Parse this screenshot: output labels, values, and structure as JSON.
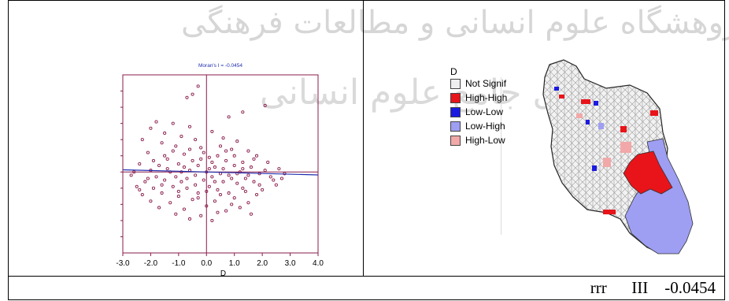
{
  "watermark_line1": "پژوهشگاه علوم انسانی و مطالعات فرهنگی",
  "watermark_line2": "پرتال جامع علوم انسانی",
  "chart_data": {
    "type": "scatter",
    "title": "Moran's I = -0.0454",
    "xlabel": "D",
    "ylabel": "",
    "xlim": [
      -3.0,
      4.0
    ],
    "ylim": [
      -5.0,
      6.0
    ],
    "xticks": [
      "-3.0",
      "-2.0",
      "-1.0",
      "0.0",
      "1.0",
      "2.0",
      "3.0",
      "4.0"
    ],
    "regression": {
      "slope": -0.0454,
      "intercept": 0.0
    },
    "series": [
      {
        "values": [
          [
            -0.3,
            5.3
          ],
          [
            -0.5,
            4.8
          ],
          [
            -0.7,
            4.6
          ],
          [
            2.1,
            4.1
          ],
          [
            1.3,
            3.7
          ],
          [
            0.8,
            3.4
          ],
          [
            -1.8,
            3.1
          ],
          [
            -1.2,
            3.0
          ],
          [
            -2.0,
            2.7
          ],
          [
            -1.5,
            2.4
          ],
          [
            -0.6,
            2.8
          ],
          [
            0.2,
            2.5
          ],
          [
            -0.9,
            2.2
          ],
          [
            -2.3,
            2.0
          ],
          [
            -0.4,
            2.0
          ],
          [
            0.6,
            2.1
          ],
          [
            1.1,
            1.9
          ],
          [
            -1.6,
            1.8
          ],
          [
            -1.1,
            1.6
          ],
          [
            -0.2,
            1.5
          ],
          [
            0.9,
            1.4
          ],
          [
            1.5,
            1.3
          ],
          [
            -2.1,
            1.2
          ],
          [
            -0.8,
            1.1
          ],
          [
            0.4,
            1.0
          ],
          [
            1.8,
            1.0
          ],
          [
            -1.4,
            0.8
          ],
          [
            -0.5,
            0.7
          ],
          [
            0.1,
            0.9
          ],
          [
            0.7,
            0.7
          ],
          [
            1.3,
            0.6
          ],
          [
            2.2,
            0.6
          ],
          [
            -2.4,
            0.5
          ],
          [
            -1.7,
            0.4
          ],
          [
            -1.0,
            0.5
          ],
          [
            -0.3,
            0.4
          ],
          [
            0.3,
            0.3
          ],
          [
            1.0,
            0.4
          ],
          [
            1.6,
            0.3
          ],
          [
            2.6,
            0.2
          ],
          [
            -2.0,
            0.1
          ],
          [
            -1.3,
            0.0
          ],
          [
            -0.6,
            0.1
          ],
          [
            0.0,
            0.0
          ],
          [
            0.5,
            -0.1
          ],
          [
            1.2,
            0.0
          ],
          [
            1.9,
            -0.1
          ],
          [
            2.8,
            -0.1
          ],
          [
            -2.7,
            -0.2
          ],
          [
            -1.8,
            -0.3
          ],
          [
            -1.1,
            -0.3
          ],
          [
            -0.4,
            -0.2
          ],
          [
            0.2,
            -0.3
          ],
          [
            0.8,
            -0.2
          ],
          [
            1.4,
            -0.4
          ],
          [
            2.3,
            -0.3
          ],
          [
            -2.2,
            -0.6
          ],
          [
            -1.5,
            -0.5
          ],
          [
            -0.9,
            -0.6
          ],
          [
            -0.1,
            -0.5
          ],
          [
            0.6,
            -0.6
          ],
          [
            1.1,
            -0.7
          ],
          [
            1.7,
            -0.6
          ],
          [
            2.5,
            -0.8
          ],
          [
            -2.5,
            -0.9
          ],
          [
            -1.9,
            -1.0
          ],
          [
            -1.2,
            -0.9
          ],
          [
            -0.7,
            -1.0
          ],
          [
            0.1,
            -0.9
          ],
          [
            0.4,
            -1.1
          ],
          [
            1.3,
            -1.0
          ],
          [
            2.0,
            -1.1
          ],
          [
            -2.3,
            -1.4
          ],
          [
            -1.6,
            -1.3
          ],
          [
            -1.0,
            -1.5
          ],
          [
            -0.3,
            -1.3
          ],
          [
            0.5,
            -1.4
          ],
          [
            1.0,
            -1.6
          ],
          [
            1.8,
            -1.4
          ],
          [
            -2.0,
            -1.8
          ],
          [
            -1.3,
            -1.9
          ],
          [
            -0.5,
            -1.7
          ],
          [
            0.3,
            -1.8
          ],
          [
            0.9,
            -2.0
          ],
          [
            1.5,
            -1.9
          ],
          [
            -1.7,
            -2.2
          ],
          [
            -0.8,
            -2.3
          ],
          [
            0.0,
            -2.1
          ],
          [
            0.7,
            -2.4
          ],
          [
            1.2,
            -2.2
          ],
          [
            -1.1,
            -2.6
          ],
          [
            -0.2,
            -2.7
          ],
          [
            0.4,
            -2.5
          ],
          [
            1.6,
            -2.6
          ],
          [
            -0.6,
            -2.9
          ],
          [
            0.2,
            -3.0
          ],
          [
            -1.4,
            0.2
          ],
          [
            -0.9,
            0.0
          ],
          [
            0.6,
            0.2
          ],
          [
            1.5,
            -0.2
          ],
          [
            -0.2,
            0.8
          ],
          [
            0.9,
            -0.4
          ],
          [
            -1.9,
            0.7
          ],
          [
            -0.7,
            -0.4
          ],
          [
            0.2,
            0.6
          ],
          [
            1.0,
            1.0
          ],
          [
            -2.6,
            0.0
          ],
          [
            2.1,
            0.1
          ],
          [
            -1.2,
            1.3
          ],
          [
            0.5,
            1.6
          ],
          [
            -0.4,
            -0.8
          ],
          [
            1.4,
            -1.2
          ],
          [
            -1.6,
            -0.8
          ],
          [
            0.0,
            -1.2
          ],
          [
            2.4,
            -0.5
          ],
          [
            -2.1,
            -0.4
          ],
          [
            -0.1,
            1.2
          ],
          [
            0.8,
            -1.3
          ],
          [
            1.7,
            0.8
          ],
          [
            -0.6,
            1.4
          ],
          [
            -1.5,
            1.0
          ],
          [
            0.3,
            -0.6
          ],
          [
            1.1,
            -0.1
          ],
          [
            -0.3,
            -1.6
          ],
          [
            0.7,
            1.3
          ],
          [
            -1.0,
            -1.2
          ],
          [
            1.9,
            -0.8
          ],
          [
            -2.4,
            -1.1
          ],
          [
            0.1,
            0.2
          ],
          [
            -0.8,
            0.3
          ],
          [
            1.3,
            0.2
          ],
          [
            2.7,
            -0.4
          ]
        ]
      }
    ]
  },
  "map": {
    "legend_title": "D",
    "legend": [
      {
        "label": "Not Signif",
        "color": "#efefef"
      },
      {
        "label": "High-High",
        "color": "#e8141a"
      },
      {
        "label": "Low-Low",
        "color": "#1a1ae0"
      },
      {
        "label": "Low-High",
        "color": "#9e9ef2"
      },
      {
        "label": "High-Low",
        "color": "#f2a8a8"
      }
    ]
  },
  "footer": {
    "text": "rrr      III    -0.0454"
  },
  "colors": {
    "frame": "#8a1b4a",
    "points": "#8a1b4a",
    "regression": "#1f2fb0"
  }
}
